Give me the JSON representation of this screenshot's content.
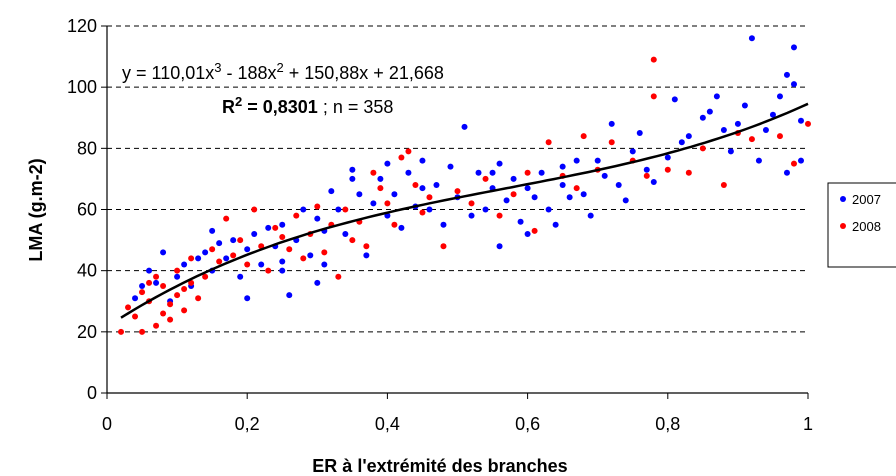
{
  "chart_data": {
    "type": "scatter",
    "xlabel": "ER à l'extrémité des branches",
    "ylabel": "LMA (g.m-2)",
    "xlim": [
      0,
      1
    ],
    "ylim": [
      0,
      120
    ],
    "x_ticks": [
      "0",
      "0,2",
      "0,4",
      "0,6",
      "0,8",
      "1"
    ],
    "y_ticks": [
      "0",
      "20",
      "40",
      "60",
      "80",
      "100",
      "120"
    ],
    "grid": "horizontal dashed",
    "legend_position": "right",
    "annotation": {
      "equation": {
        "prefix": "y = 110,01x",
        "sup1": "3",
        "mid": " - 188x",
        "sup2": "2",
        "suffix": " + 150,88x + 21,668"
      },
      "r2": {
        "label": "R",
        "sup": "2",
        "value": " = 0,8301",
        "rest": " ; n = 358"
      }
    },
    "trendline": {
      "type": "polynomial",
      "coefficients": [
        110.01,
        -188,
        150.88,
        21.668
      ],
      "x_range": [
        0.02,
        1.0
      ]
    },
    "series": [
      {
        "name": "2007",
        "color": "#0000ff",
        "points": [
          [
            0.04,
            31
          ],
          [
            0.05,
            35
          ],
          [
            0.06,
            40
          ],
          [
            0.07,
            36
          ],
          [
            0.08,
            46
          ],
          [
            0.09,
            30
          ],
          [
            0.1,
            38
          ],
          [
            0.11,
            42
          ],
          [
            0.12,
            35
          ],
          [
            0.13,
            44
          ],
          [
            0.14,
            46
          ],
          [
            0.15,
            53
          ],
          [
            0.15,
            40
          ],
          [
            0.16,
            49
          ],
          [
            0.17,
            44
          ],
          [
            0.18,
            50
          ],
          [
            0.19,
            38
          ],
          [
            0.2,
            47
          ],
          [
            0.2,
            31
          ],
          [
            0.21,
            52
          ],
          [
            0.22,
            42
          ],
          [
            0.23,
            54
          ],
          [
            0.24,
            48
          ],
          [
            0.25,
            43
          ],
          [
            0.25,
            55
          ],
          [
            0.26,
            32
          ],
          [
            0.27,
            50
          ],
          [
            0.28,
            60
          ],
          [
            0.29,
            45
          ],
          [
            0.3,
            57
          ],
          [
            0.31,
            42
          ],
          [
            0.31,
            53
          ],
          [
            0.32,
            66
          ],
          [
            0.33,
            60
          ],
          [
            0.34,
            52
          ],
          [
            0.35,
            73
          ],
          [
            0.36,
            65
          ],
          [
            0.37,
            45
          ],
          [
            0.38,
            62
          ],
          [
            0.39,
            70
          ],
          [
            0.4,
            75
          ],
          [
            0.4,
            58
          ],
          [
            0.41,
            65
          ],
          [
            0.42,
            54
          ],
          [
            0.43,
            72
          ],
          [
            0.44,
            61
          ],
          [
            0.45,
            67
          ],
          [
            0.46,
            60
          ],
          [
            0.47,
            68
          ],
          [
            0.48,
            55
          ],
          [
            0.49,
            74
          ],
          [
            0.5,
            64
          ],
          [
            0.51,
            87
          ],
          [
            0.52,
            58
          ],
          [
            0.53,
            72
          ],
          [
            0.54,
            60
          ],
          [
            0.55,
            67
          ],
          [
            0.56,
            48
          ],
          [
            0.56,
            75
          ],
          [
            0.57,
            63
          ],
          [
            0.58,
            70
          ],
          [
            0.59,
            56
          ],
          [
            0.6,
            67
          ],
          [
            0.61,
            64
          ],
          [
            0.62,
            72
          ],
          [
            0.63,
            60
          ],
          [
            0.64,
            55
          ],
          [
            0.65,
            74
          ],
          [
            0.66,
            64
          ],
          [
            0.67,
            76
          ],
          [
            0.68,
            65
          ],
          [
            0.69,
            58
          ],
          [
            0.7,
            76
          ],
          [
            0.71,
            71
          ],
          [
            0.72,
            88
          ],
          [
            0.73,
            68
          ],
          [
            0.74,
            63
          ],
          [
            0.75,
            79
          ],
          [
            0.76,
            85
          ],
          [
            0.77,
            73
          ],
          [
            0.78,
            69
          ],
          [
            0.8,
            77
          ],
          [
            0.81,
            96
          ],
          [
            0.82,
            82
          ],
          [
            0.83,
            84
          ],
          [
            0.85,
            90
          ],
          [
            0.86,
            92
          ],
          [
            0.87,
            97
          ],
          [
            0.88,
            86
          ],
          [
            0.89,
            79
          ],
          [
            0.9,
            88
          ],
          [
            0.91,
            94
          ],
          [
            0.92,
            116
          ],
          [
            0.93,
            76
          ],
          [
            0.94,
            86
          ],
          [
            0.95,
            91
          ],
          [
            0.96,
            97
          ],
          [
            0.97,
            104
          ],
          [
            0.97,
            72
          ],
          [
            0.98,
            101
          ],
          [
            0.98,
            113
          ],
          [
            0.99,
            89
          ],
          [
            0.99,
            76
          ],
          [
            0.35,
            70
          ],
          [
            0.45,
            76
          ],
          [
            0.55,
            72
          ],
          [
            0.65,
            68
          ],
          [
            0.25,
            40
          ],
          [
            0.3,
            36
          ],
          [
            0.6,
            52
          ]
        ]
      },
      {
        "name": "2008",
        "color": "#ff0000",
        "points": [
          [
            0.02,
            20
          ],
          [
            0.03,
            28
          ],
          [
            0.04,
            25
          ],
          [
            0.05,
            20
          ],
          [
            0.05,
            33
          ],
          [
            0.06,
            30
          ],
          [
            0.07,
            22
          ],
          [
            0.07,
            38
          ],
          [
            0.08,
            26
          ],
          [
            0.08,
            35
          ],
          [
            0.09,
            29
          ],
          [
            0.1,
            32
          ],
          [
            0.1,
            40
          ],
          [
            0.11,
            27
          ],
          [
            0.12,
            36
          ],
          [
            0.12,
            44
          ],
          [
            0.13,
            31
          ],
          [
            0.14,
            38
          ],
          [
            0.15,
            47
          ],
          [
            0.16,
            43
          ],
          [
            0.17,
            57
          ],
          [
            0.18,
            45
          ],
          [
            0.19,
            50
          ],
          [
            0.2,
            42
          ],
          [
            0.21,
            60
          ],
          [
            0.22,
            48
          ],
          [
            0.23,
            40
          ],
          [
            0.24,
            54
          ],
          [
            0.25,
            51
          ],
          [
            0.26,
            47
          ],
          [
            0.27,
            58
          ],
          [
            0.28,
            44
          ],
          [
            0.29,
            52
          ],
          [
            0.3,
            61
          ],
          [
            0.31,
            46
          ],
          [
            0.32,
            55
          ],
          [
            0.33,
            38
          ],
          [
            0.34,
            60
          ],
          [
            0.35,
            50
          ],
          [
            0.36,
            56
          ],
          [
            0.37,
            48
          ],
          [
            0.38,
            72
          ],
          [
            0.39,
            67
          ],
          [
            0.4,
            62
          ],
          [
            0.41,
            55
          ],
          [
            0.42,
            77
          ],
          [
            0.43,
            79
          ],
          [
            0.44,
            68
          ],
          [
            0.45,
            59
          ],
          [
            0.46,
            64
          ],
          [
            0.48,
            48
          ],
          [
            0.5,
            66
          ],
          [
            0.52,
            62
          ],
          [
            0.54,
            70
          ],
          [
            0.56,
            58
          ],
          [
            0.58,
            65
          ],
          [
            0.6,
            72
          ],
          [
            0.61,
            53
          ],
          [
            0.63,
            82
          ],
          [
            0.65,
            71
          ],
          [
            0.67,
            67
          ],
          [
            0.68,
            84
          ],
          [
            0.7,
            73
          ],
          [
            0.72,
            82
          ],
          [
            0.75,
            76
          ],
          [
            0.77,
            71
          ],
          [
            0.78,
            109
          ],
          [
            0.78,
            97
          ],
          [
            0.8,
            73
          ],
          [
            0.83,
            72
          ],
          [
            0.85,
            80
          ],
          [
            0.88,
            68
          ],
          [
            0.9,
            85
          ],
          [
            0.92,
            83
          ],
          [
            0.96,
            84
          ],
          [
            0.98,
            75
          ],
          [
            1.0,
            88
          ],
          [
            0.06,
            36
          ],
          [
            0.09,
            24
          ],
          [
            0.11,
            34
          ]
        ]
      }
    ]
  }
}
